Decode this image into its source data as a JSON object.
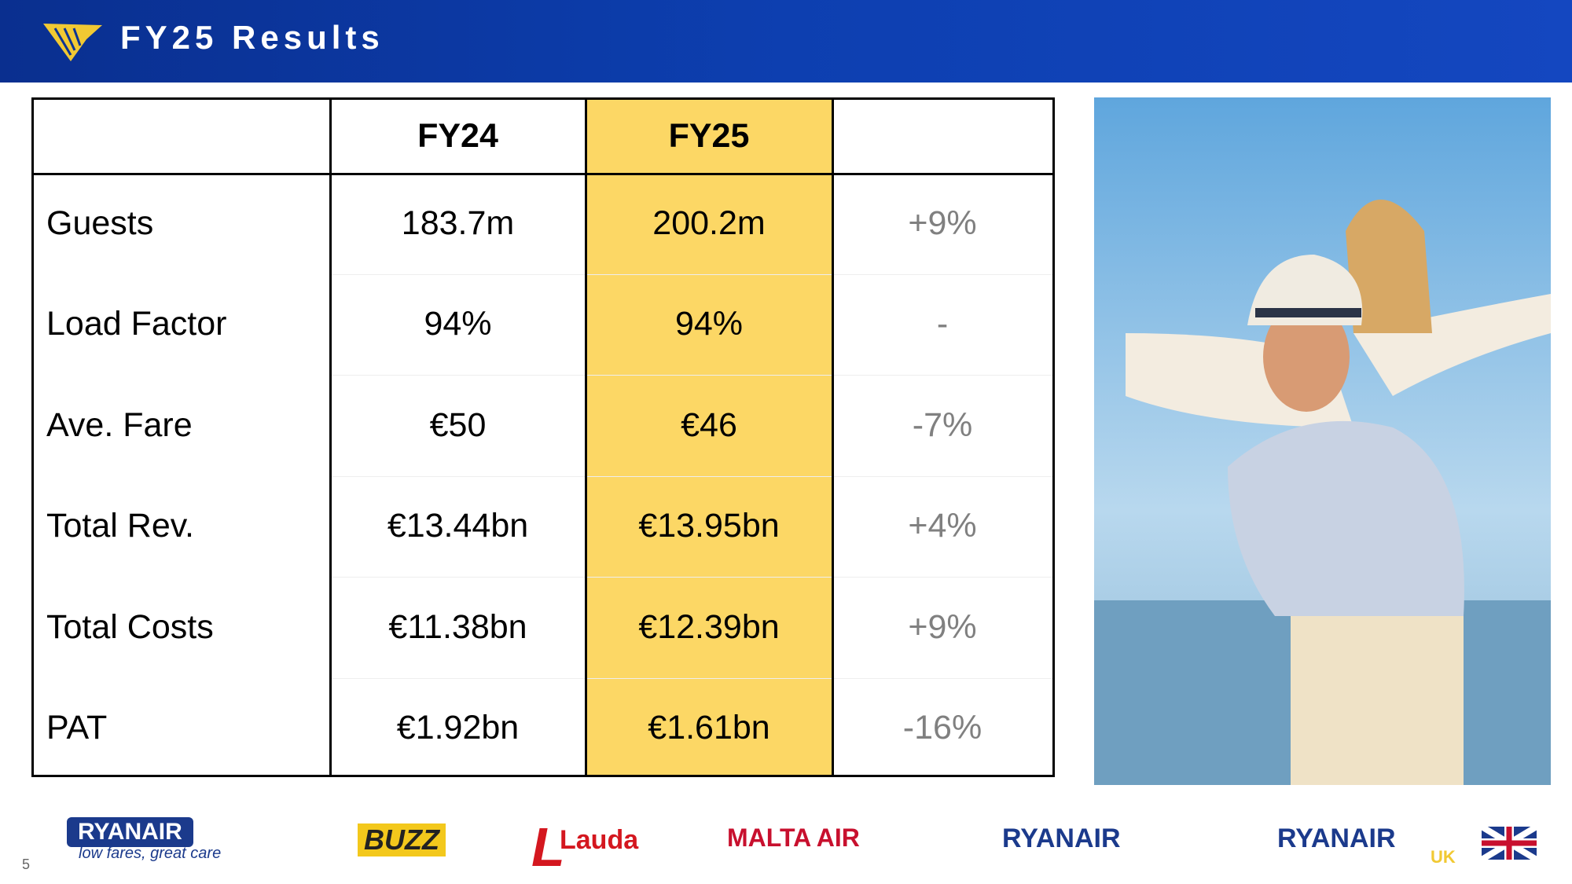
{
  "header": {
    "title": "FY25 Results"
  },
  "table": {
    "columns": [
      "FY24",
      "FY25"
    ],
    "rows": [
      [
        "Guests",
        "183.7m",
        "200.2m",
        "+9%"
      ],
      [
        "Load Factor",
        "94%",
        "94%",
        "-"
      ],
      [
        "Ave. Fare",
        "€50",
        "€46",
        "-7%"
      ],
      [
        "Total Rev.",
        "€13.44bn",
        "€13.95bn",
        "+4%"
      ],
      [
        "Total Costs",
        "€11.38bn",
        "€12.39bn",
        "+9%"
      ],
      [
        "PAT",
        "€1.92bn",
        "€1.61bn",
        "-16%"
      ]
    ]
  },
  "logos": {
    "ryanair_main": "RYANAIR",
    "tagline": "low fares, great care",
    "buzz": "BUZZ",
    "lauda": "Lauda",
    "malta": "MALTA AIR",
    "ryanair": "RYANAIR",
    "ryanair_uk": "RYANAIR",
    "uk": "UK"
  },
  "page_number": "5"
}
